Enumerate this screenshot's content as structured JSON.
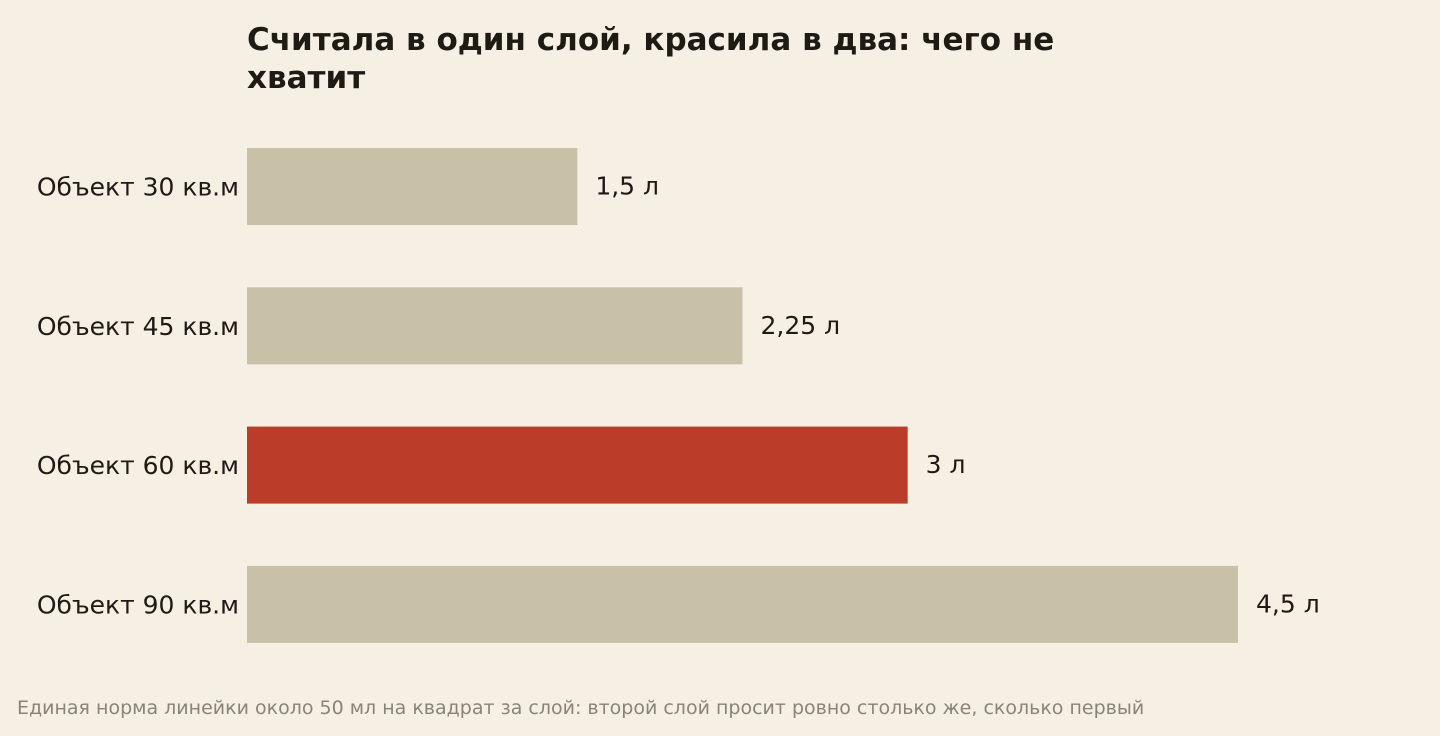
{
  "chart_data": {
    "type": "bar",
    "orientation": "horizontal",
    "title_lines": [
      "Считала в один слой, красила в два: чего не",
      "хватит"
    ],
    "categories": [
      "Объект 30 кв.м",
      "Объект 45 кв.м",
      "Объект 60 кв.м",
      "Объект 90 кв.м"
    ],
    "values": [
      1.5,
      2.25,
      3,
      4.5
    ],
    "value_labels": [
      "1,5 л",
      "2,25 л",
      "3 л",
      "4,5 л"
    ],
    "highlight_index": 2,
    "xlim": [
      0,
      4.5
    ],
    "grid": false,
    "legend": "none",
    "footnote": "Единая норма линейки около 50 мл на квадрат за слой: второй слой просит ровно столько же, сколько первый"
  },
  "colors": {
    "background": "#f6efe3",
    "bar": "#c9c0a8",
    "highlight": "#bb3c28",
    "text": "#1e1a14",
    "note": "#8a8478"
  }
}
